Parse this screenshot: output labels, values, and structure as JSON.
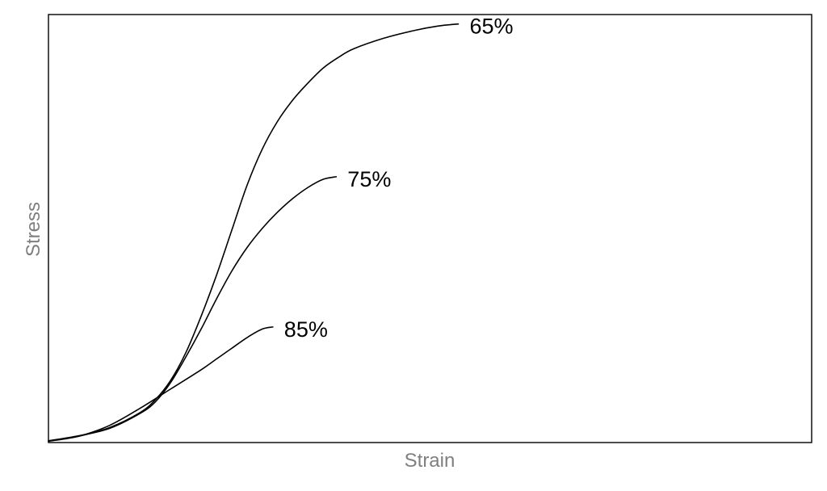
{
  "chart_data": {
    "type": "line",
    "title": "",
    "xlabel": "Strain",
    "ylabel": "Stress",
    "xlim": [
      0,
      100
    ],
    "ylim": [
      0,
      100
    ],
    "x_ticks": "none",
    "y_ticks": "none",
    "grid": false,
    "legend": "none",
    "line_color": "#000000",
    "axis_label_color": "#7f7f7f",
    "series": [
      {
        "name": "65%",
        "points": [
          [
            0,
            0.4
          ],
          [
            4,
            1.5
          ],
          [
            8,
            3.5
          ],
          [
            12,
            7.0
          ],
          [
            14,
            10.0
          ],
          [
            16,
            14.5
          ],
          [
            18,
            21.0
          ],
          [
            20,
            29.5
          ],
          [
            22,
            39.0
          ],
          [
            24,
            49.5
          ],
          [
            26,
            60.0
          ],
          [
            28,
            68.5
          ],
          [
            30,
            75.0
          ],
          [
            32,
            80.0
          ],
          [
            34,
            84.0
          ],
          [
            36,
            87.5
          ],
          [
            38,
            90.0
          ],
          [
            40,
            92.0
          ],
          [
            44,
            94.5
          ],
          [
            48,
            96.3
          ],
          [
            51,
            97.3
          ],
          [
            53.7,
            97.8
          ]
        ]
      },
      {
        "name": "75%",
        "points": [
          [
            0,
            0.4
          ],
          [
            4,
            1.6
          ],
          [
            8,
            3.3
          ],
          [
            12,
            6.8
          ],
          [
            14,
            9.5
          ],
          [
            16,
            14.0
          ],
          [
            18,
            20.0
          ],
          [
            20,
            26.5
          ],
          [
            22,
            33.5
          ],
          [
            24,
            40.0
          ],
          [
            26,
            45.5
          ],
          [
            28,
            50.0
          ],
          [
            30,
            53.8
          ],
          [
            32,
            57.0
          ],
          [
            34,
            59.6
          ],
          [
            36,
            61.5
          ],
          [
            37.7,
            62.1
          ]
        ]
      },
      {
        "name": "85%",
        "points": [
          [
            0,
            0.3
          ],
          [
            4,
            1.5
          ],
          [
            8,
            4.0
          ],
          [
            12,
            8.0
          ],
          [
            16,
            12.5
          ],
          [
            20,
            17.0
          ],
          [
            22,
            19.5
          ],
          [
            24,
            22.0
          ],
          [
            26,
            24.5
          ],
          [
            28,
            26.5
          ],
          [
            29.4,
            27.0
          ]
        ]
      }
    ]
  }
}
